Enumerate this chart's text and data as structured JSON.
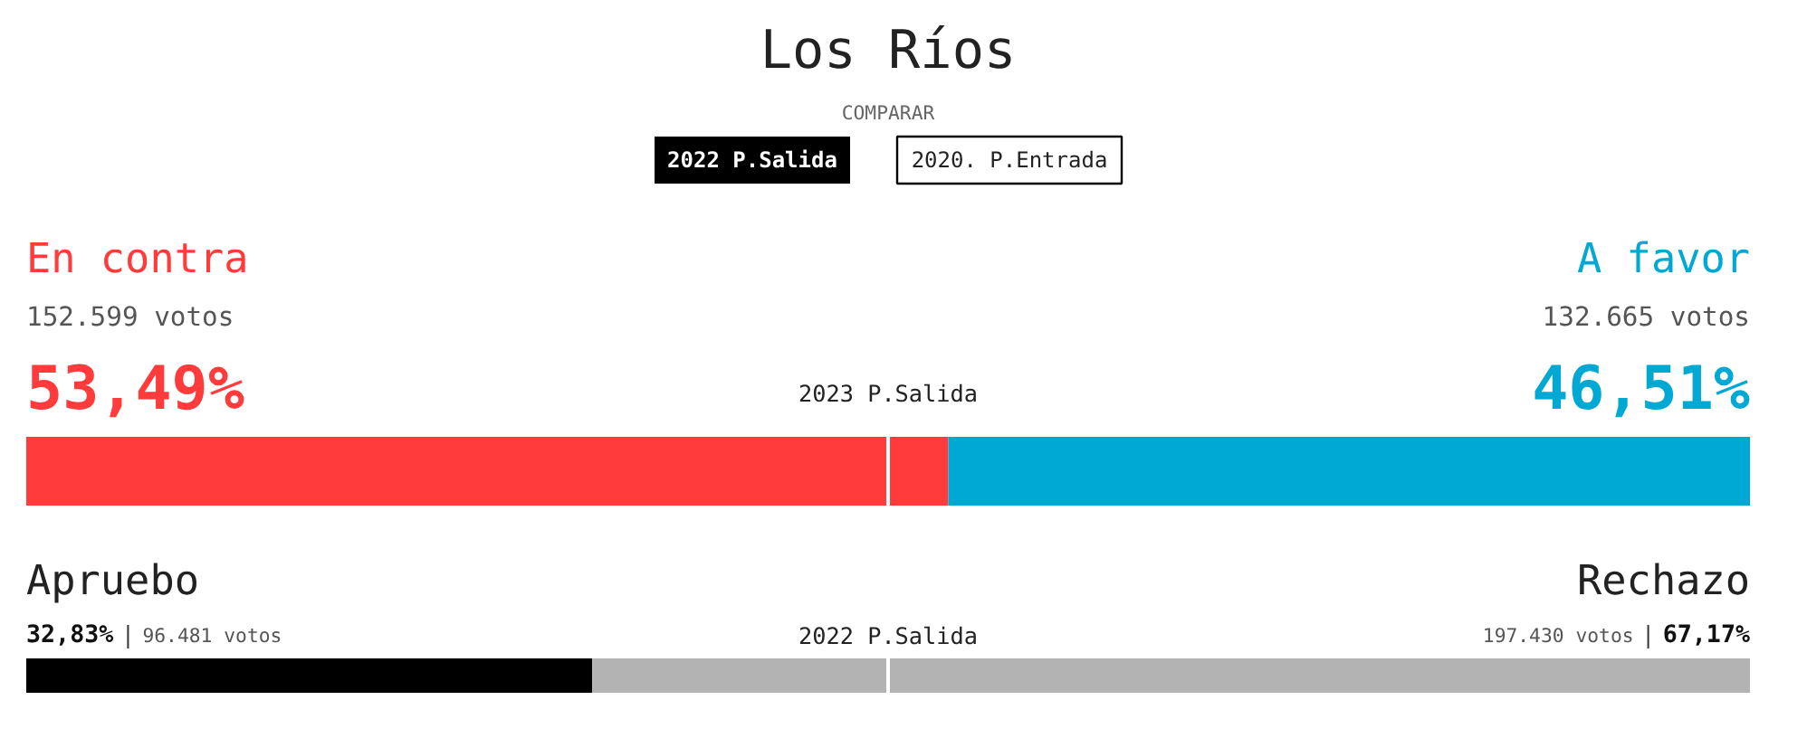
{
  "chart_data": [
    {
      "type": "bar",
      "orientation": "horizontal",
      "stacked": true,
      "title": "Los Ríos",
      "categories": [
        null
      ],
      "xlim": [
        0,
        100
      ],
      "tick_labels": false,
      "grid": false,
      "legend": false,
      "series": [
        {
          "name": "En contra",
          "color": "#ff3b3b",
          "values": [
            53.49
          ],
          "value_labels": [
            "53,49%"
          ]
        },
        {
          "name": "A favor",
          "color": "#00a8d4",
          "values": [
            46.51
          ],
          "value_labels": [
            "46,51%"
          ]
        }
      ],
      "ref_lines": [
        {
          "axis": "x",
          "value": 50,
          "label": "2023 P.Salida",
          "color": "#ffffff"
        }
      ],
      "annotations": [
        "COMPARAR",
        "2022 P.Salida",
        "2020. P.Entrada",
        "152.599 votos",
        "132.665 votos"
      ]
    },
    {
      "type": "bar",
      "orientation": "horizontal",
      "stacked": true,
      "categories": [
        null
      ],
      "xlim": [
        0,
        100
      ],
      "tick_labels": false,
      "grid": false,
      "legend": false,
      "series": [
        {
          "name": "Apruebo",
          "color": "#000000",
          "values": [
            32.83
          ],
          "value_labels": [
            "32,83%"
          ]
        },
        {
          "name": "Rechazo",
          "color": "#b3b3b3",
          "values": [
            67.17
          ],
          "value_labels": [
            "67,17%"
          ]
        }
      ],
      "ref_lines": [
        {
          "axis": "x",
          "value": 50,
          "label": "2022 P.Salida",
          "color": "#ffffff"
        }
      ],
      "annotations": [
        "96.481 votos",
        "197.430 votos"
      ]
    }
  ]
}
